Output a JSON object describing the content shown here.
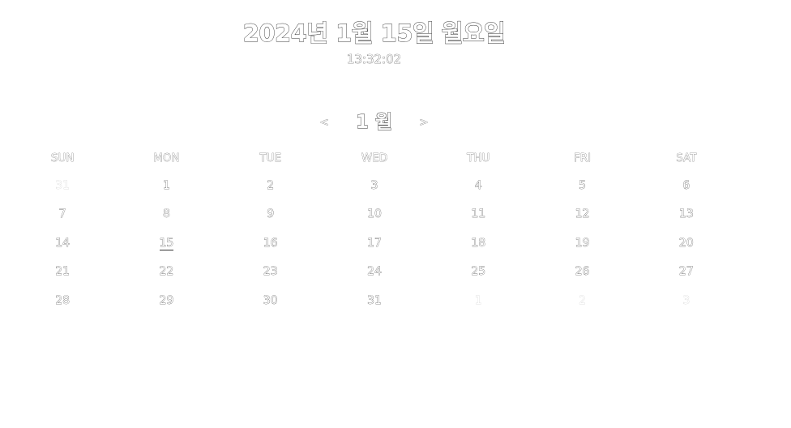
{
  "header": {
    "date_text": "2024년 1월 15일 월요일",
    "time_text": "13:32:02"
  },
  "nav": {
    "prev_label": "<",
    "month_label": "1 월",
    "next_label": ">"
  },
  "calendar": {
    "weekdays": [
      "SUN",
      "MON",
      "TUE",
      "WED",
      "THU",
      "FRI",
      "SAT"
    ],
    "weeks": [
      [
        "31",
        "1",
        "2",
        "3",
        "4",
        "5",
        "6"
      ],
      [
        "7",
        "8",
        "9",
        "10",
        "11",
        "12",
        "13"
      ],
      [
        "14",
        "15",
        "16",
        "17",
        "18",
        "19",
        "20"
      ],
      [
        "21",
        "22",
        "23",
        "24",
        "25",
        "26",
        "27"
      ],
      [
        "28",
        "29",
        "30",
        "31",
        "1",
        "2",
        "3"
      ]
    ],
    "dim_cells": [
      [
        0,
        0
      ],
      [
        4,
        4
      ],
      [
        4,
        5
      ],
      [
        4,
        6
      ]
    ],
    "today_cell": [
      2,
      1
    ]
  }
}
